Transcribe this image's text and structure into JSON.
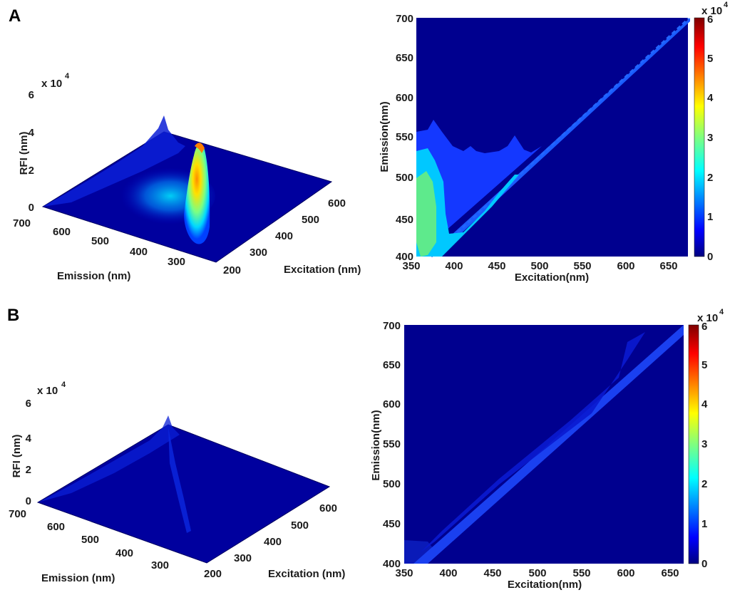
{
  "chart_data": [
    {
      "panel": "A",
      "type": "surface",
      "xlabel": "Emission (nm)",
      "ylabel": "Excitation (nm)",
      "zlabel": "RFI (nm)",
      "z_multiplier": "x 10",
      "z_exponent": "4",
      "x_ticks": [
        "700",
        "600",
        "500",
        "400",
        "300"
      ],
      "y_ticks": [
        "200",
        "300",
        "400",
        "500",
        "600"
      ],
      "z_ticks": [
        "0",
        "2",
        "4",
        "6"
      ],
      "xlim": [
        250,
        700
      ],
      "ylim": [
        200,
        650
      ],
      "zlim": [
        0,
        6
      ],
      "peaks": [
        {
          "excitation": 360,
          "emission": 480,
          "value": 3.6
        },
        {
          "excitation": 640,
          "emission": 650,
          "value": 4.6
        }
      ],
      "colormap": "jet"
    },
    {
      "panel": "A",
      "type": "heatmap",
      "xlabel": "Excitation(nm)",
      "ylabel": "Emission(nm)",
      "x_ticks": [
        "350",
        "400",
        "450",
        "500",
        "550",
        "600",
        "650"
      ],
      "y_ticks": [
        "400",
        "450",
        "500",
        "550",
        "600",
        "650",
        "700"
      ],
      "xlim": [
        350,
        665
      ],
      "ylim": [
        400,
        700
      ],
      "colorbar_ticks": [
        "0",
        "1",
        "2",
        "3",
        "4",
        "5",
        "6"
      ],
      "colorbar_multiplier": "x 10",
      "colorbar_exponent": "4",
      "colorbar_range": [
        0,
        6
      ],
      "colormap": "jet",
      "background_level": 0,
      "contour_levels": [
        {
          "level": 0.5,
          "boundary": [
            [
              350,
              558
            ],
            [
              365,
              560
            ],
            [
              372,
              572
            ],
            [
              382,
              555
            ],
            [
              392,
              535
            ],
            [
              410,
              540
            ],
            [
              420,
              533
            ],
            [
              432,
              535
            ],
            [
              450,
              531
            ],
            [
              462,
              545
            ],
            [
              470,
              550
            ],
            [
              478,
              535
            ],
            [
              490,
              530
            ],
            [
              500,
              533
            ]
          ]
        },
        {
          "level": 1.0,
          "region": "Ex 350-385 / Em 400-545 and near-diagonal band Ex 380-470"
        },
        {
          "level": 1.5,
          "region": "Ex 350-375 / Em 425-515"
        }
      ]
    },
    {
      "panel": "B",
      "type": "surface",
      "xlabel": "Emission (nm)",
      "ylabel": "Excitation (nm)",
      "zlabel": "RFI (nm)",
      "z_multiplier": "x 10",
      "z_exponent": "4",
      "x_ticks": [
        "700",
        "600",
        "500",
        "400",
        "300"
      ],
      "y_ticks": [
        "200",
        "300",
        "400",
        "500",
        "600"
      ],
      "z_ticks": [
        "0",
        "2",
        "4",
        "6"
      ],
      "xlim": [
        250,
        700
      ],
      "ylim": [
        200,
        650
      ],
      "zlim": [
        0,
        6
      ],
      "peaks": [
        {
          "excitation": 640,
          "emission": 650,
          "value": 4.2
        }
      ],
      "colormap": "jet"
    },
    {
      "panel": "B",
      "type": "heatmap",
      "xlabel": "Excitation(nm)",
      "ylabel": "Emission(nm)",
      "x_ticks": [
        "350",
        "400",
        "450",
        "500",
        "550",
        "600",
        "650"
      ],
      "y_ticks": [
        "400",
        "450",
        "500",
        "550",
        "600",
        "650",
        "700"
      ],
      "xlim": [
        350,
        665
      ],
      "ylim": [
        400,
        700
      ],
      "colorbar_ticks": [
        "0",
        "1",
        "2",
        "3",
        "4",
        "5",
        "6"
      ],
      "colorbar_multiplier": "x 10",
      "colorbar_exponent": "4",
      "colorbar_range": [
        0,
        6
      ],
      "colormap": "jet",
      "background_level": 0,
      "contour_levels": [
        {
          "level": 0.3,
          "region": "narrow band along the diagonal Ex = Em"
        }
      ]
    }
  ]
}
